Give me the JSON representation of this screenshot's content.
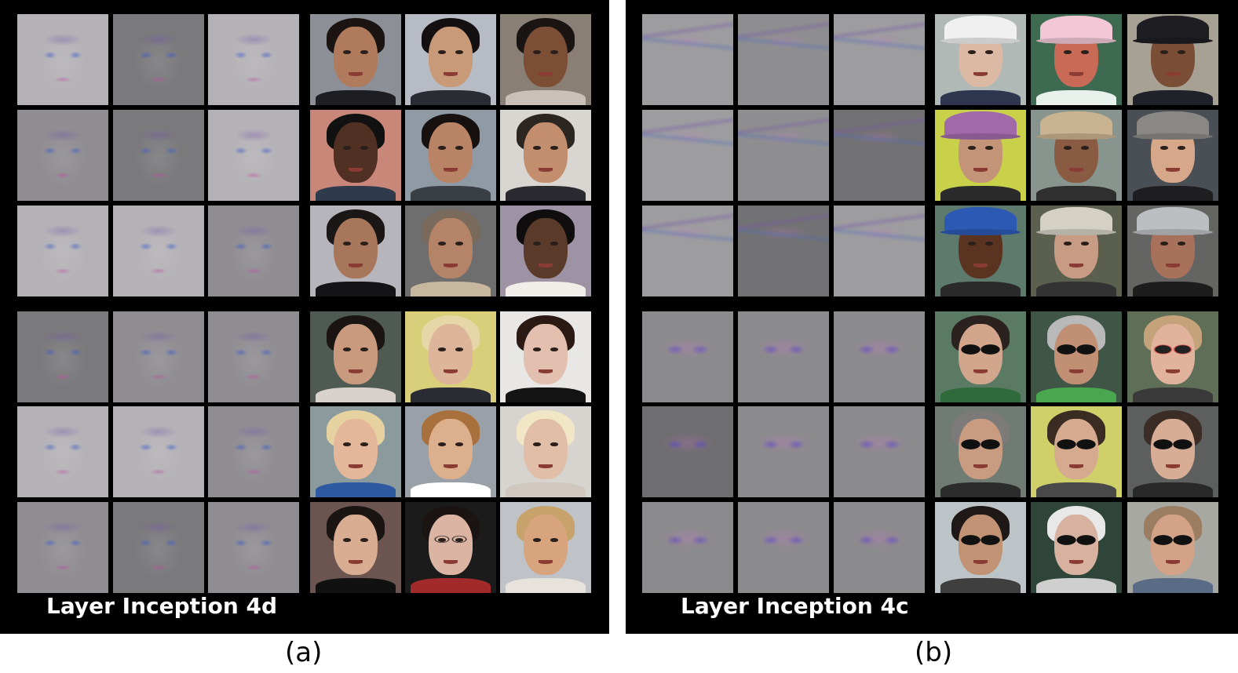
{
  "panels": [
    {
      "id": "a",
      "layer_label": "Layer Inception 4d",
      "caption": "(a)",
      "rows": 6,
      "deconv_columns": 3,
      "photo_columns": 3,
      "groups": [
        "faces of men",
        "faces of women"
      ]
    },
    {
      "id": "b",
      "layer_label": "Layer Inception 4c",
      "caption": "(b)",
      "rows": 6,
      "deconv_columns": 3,
      "photo_columns": 3,
      "groups": [
        "people wearing hats",
        "people wearing sunglasses"
      ]
    }
  ]
}
